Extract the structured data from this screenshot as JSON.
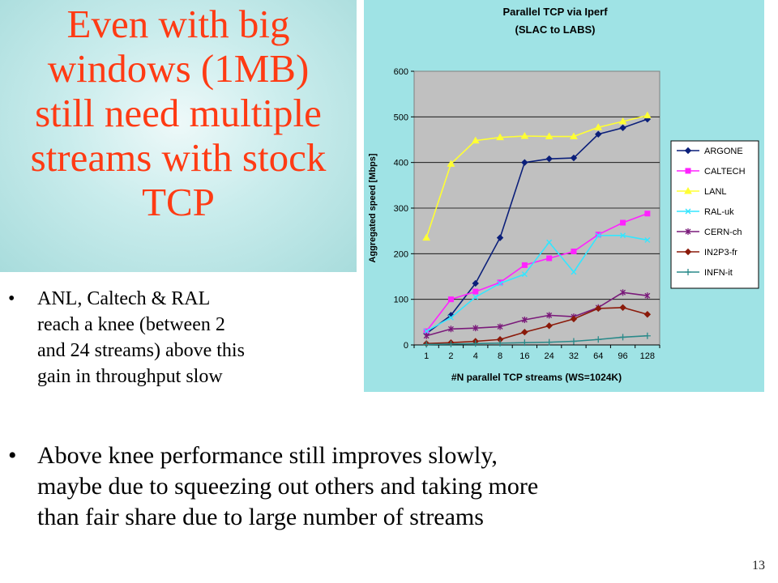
{
  "title": {
    "lines": [
      "Even with big",
      "windows (1MB)",
      "still need multiple",
      "streams with stock",
      "TCP"
    ]
  },
  "bullet1": {
    "lines": [
      "ANL, Caltech & RAL",
      "reach a knee (between 2",
      "and 24 streams) above this",
      "gain in throughput slow"
    ]
  },
  "bullet2": {
    "lines": [
      "Above knee performance still improves slowly,",
      "maybe due to squeezing out others and taking more",
      "than fair share due to large number of streams"
    ]
  },
  "page_number": "13",
  "chart_data": {
    "type": "line",
    "title": "Parallel TCP via Iperf",
    "subtitle": "(SLAC to LABS)",
    "xlabel": "#N parallel TCP streams (WS=1024K)",
    "ylabel": "Aggregated speed [Mbps]",
    "categories": [
      "1",
      "2",
      "4",
      "8",
      "16",
      "24",
      "32",
      "64",
      "96",
      "128"
    ],
    "ylim": [
      0,
      600
    ],
    "yticks": [
      "0",
      "100",
      "200",
      "300",
      "400",
      "500",
      "600"
    ],
    "grid": true,
    "legend_position": "right",
    "series": [
      {
        "name": "ARGONE",
        "color": "#0b1f7a",
        "marker": "diamond",
        "values": [
          25,
          65,
          135,
          235,
          400,
          408,
          410,
          462,
          476,
          495
        ]
      },
      {
        "name": "CALTECH",
        "color": "#ff22ff",
        "marker": "square",
        "values": [
          30,
          100,
          117,
          137,
          175,
          190,
          205,
          242,
          268,
          288
        ]
      },
      {
        "name": "LANL",
        "color": "#ffff33",
        "marker": "triangle",
        "values": [
          235,
          397,
          448,
          455,
          458,
          457,
          457,
          477,
          490,
          503
        ]
      },
      {
        "name": "RAL-uk",
        "color": "#33e6ff",
        "marker": "x",
        "values": [
          30,
          60,
          105,
          135,
          155,
          225,
          160,
          240,
          240,
          230
        ]
      },
      {
        "name": "CERN-ch",
        "color": "#7a1a7a",
        "marker": "star",
        "values": [
          20,
          35,
          37,
          40,
          55,
          65,
          62,
          82,
          115,
          108
        ]
      },
      {
        "name": "IN2P3-fr",
        "color": "#8b1a0a",
        "marker": "diamond",
        "values": [
          3,
          5,
          8,
          12,
          28,
          42,
          57,
          80,
          82,
          67
        ]
      },
      {
        "name": "INFN-it",
        "color": "#2a8a8a",
        "marker": "plus",
        "values": [
          1,
          2,
          3,
          4,
          5,
          6,
          8,
          12,
          17,
          20
        ]
      }
    ]
  }
}
